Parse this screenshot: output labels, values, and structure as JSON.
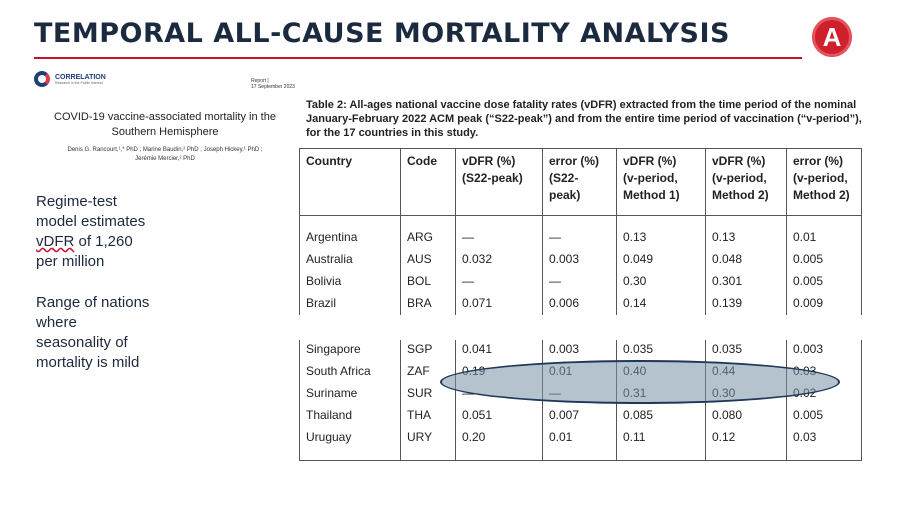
{
  "slide": {
    "title": "TEMPORAL ALL-CAUSE MORTALITY ANALYSIS",
    "logo_letter": "A"
  },
  "paper": {
    "org_name": "CORRELATION",
    "org_tagline": "Research in the Public Interest",
    "report_label": "Report |",
    "report_date": "17 September 2023",
    "title_line1": "COVID-19 vaccine-associated mortality in the",
    "title_line2": "Southern Hemisphere",
    "authors_line1": "Denis G. Rancourt,¹,* PhD ; Marine Baudin,² PhD ; Joseph Hickey,¹ PhD ;",
    "authors_line2": "Jérémie Mercier,² PhD"
  },
  "notes": {
    "regime_line1": "Regime-test",
    "regime_line2": "model estimates",
    "regime_vdfr": "vDFR",
    "regime_line3_rest": " of 1,260",
    "regime_line4": "per million",
    "range_line1": "Range of nations",
    "range_line2": "where",
    "range_line3": "seasonality of",
    "range_line4": "mortality is mild"
  },
  "table": {
    "caption": "Table 2: All-ages national vaccine dose fatality rates (vDFR) extracted from the time period of the nominal January-February 2022 ACM peak (“S22-peak”) and from the entire time period of vaccination (“v-period”), for the 17 countries in this study.",
    "headers": [
      [
        "Country"
      ],
      [
        "Code"
      ],
      [
        "vDFR (%)",
        "(S22-peak)"
      ],
      [
        "error (%)",
        "(S22-",
        "peak)"
      ],
      [
        "vDFR (%)",
        "(v-period,",
        "Method 1)"
      ],
      [
        "vDFR (%)",
        "(v-period,",
        "Method 2)"
      ],
      [
        "error (%)",
        "(v-period,",
        "Method 2)"
      ]
    ],
    "rows_top": [
      [
        "Argentina",
        "ARG",
        "—",
        "—",
        "0.13",
        "0.13",
        "0.01"
      ],
      [
        "Australia",
        "AUS",
        "0.032",
        "0.003",
        "0.049",
        "0.048",
        "0.005"
      ],
      [
        "Bolivia",
        "BOL",
        "—",
        "—",
        "0.30",
        "0.301",
        "0.005"
      ],
      [
        "Brazil",
        "BRA",
        "0.071",
        "0.006",
        "0.14",
        "0.139",
        "0.009"
      ]
    ],
    "rows_bottom": [
      [
        "Singapore",
        "SGP",
        "0.041",
        "0.003",
        "0.035",
        "0.035",
        "0.003"
      ],
      [
        "South Africa",
        "ZAF",
        "0.19",
        "0.01",
        "0.40",
        "0.44",
        "0.03"
      ],
      [
        "Suriname",
        "SUR",
        "—",
        "—",
        "0.31",
        "0.30",
        "0.02"
      ],
      [
        "Thailand",
        "THA",
        "0.051",
        "0.007",
        "0.085",
        "0.080",
        "0.005"
      ],
      [
        "Uruguay",
        "URY",
        "0.20",
        "0.01",
        "0.11",
        "0.12",
        "0.03"
      ]
    ]
  },
  "highlight": {
    "color": "#7891a8",
    "outline_color": "#1e3857"
  },
  "colors": {
    "title": "#1b2a3e",
    "accent_red": "#c8102e",
    "logo_red": "#d0202e"
  }
}
